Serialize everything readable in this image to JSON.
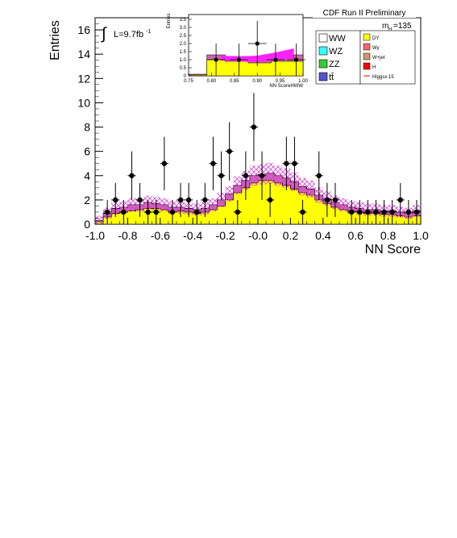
{
  "chart_data": [
    {
      "type": "histogram",
      "subtitle": "CDF Run II Preliminary",
      "xlabel": "NN Score",
      "ylabel": "Entries",
      "xlim": [
        -1.0,
        1.0
      ],
      "ylim": [
        0,
        17
      ],
      "x_ticks": [
        "-1.0",
        "-0.8",
        "-0.6",
        "-0.4",
        "-0.2",
        "-0.0",
        "0.2",
        "0.4",
        "0.6",
        "0.8",
        "1.0"
      ],
      "y_ticks": [
        "0",
        "2",
        "4",
        "6",
        "8",
        "10",
        "12",
        "14",
        "16"
      ],
      "lumi_label": "L=9.7fb",
      "lumi_exponent": "-1",
      "mass_label": "m",
      "mass_subscript": "H",
      "mass_value": "=135",
      "bin_edges": [
        -1.0,
        -0.95,
        -0.9,
        -0.85,
        -0.8,
        -0.75,
        -0.7,
        -0.65,
        -0.6,
        -0.55,
        -0.5,
        -0.45,
        -0.4,
        -0.35,
        -0.3,
        -0.25,
        -0.2,
        -0.15,
        -0.1,
        -0.05,
        0.0,
        0.05,
        0.1,
        0.15,
        0.2,
        0.25,
        0.3,
        0.35,
        0.4,
        0.45,
        0.5,
        0.55,
        0.6,
        0.65,
        0.7,
        0.75,
        0.8,
        0.85,
        0.9,
        0.95,
        1.0
      ],
      "series": [
        {
          "name": "DY",
          "color": "#ffff00",
          "values": [
            0.2,
            0.6,
            0.9,
            1.0,
            1.1,
            1.2,
            1.3,
            1.3,
            1.2,
            1.0,
            1.1,
            1.0,
            0.9,
            1.0,
            1.2,
            1.5,
            2.0,
            2.6,
            3.0,
            3.4,
            3.6,
            3.6,
            3.4,
            3.2,
            2.9,
            2.6,
            2.4,
            2.0,
            1.7,
            1.4,
            1.2,
            1.1,
            1.0,
            0.9,
            0.9,
            0.8,
            0.8,
            0.7,
            0.6,
            0.7
          ]
        },
        {
          "name": "total-background",
          "color": "#cc66aa",
          "values": [
            0.3,
            0.9,
            1.3,
            1.4,
            1.6,
            1.6,
            1.8,
            1.7,
            1.6,
            1.4,
            1.4,
            1.3,
            1.2,
            1.3,
            1.6,
            2.0,
            2.5,
            3.2,
            3.6,
            4.0,
            4.1,
            4.2,
            4.0,
            3.8,
            3.5,
            3.1,
            2.9,
            2.4,
            2.1,
            1.8,
            1.6,
            1.4,
            1.3,
            1.2,
            1.2,
            1.1,
            1.1,
            1.0,
            0.9,
            1.1
          ]
        }
      ],
      "data_points": [
        {
          "x": -0.925,
          "y": 1,
          "err": 1.0
        },
        {
          "x": -0.875,
          "y": 2,
          "err": 1.4
        },
        {
          "x": -0.825,
          "y": 1,
          "err": 1.0
        },
        {
          "x": -0.775,
          "y": 4,
          "err": 2.0
        },
        {
          "x": -0.725,
          "y": 2,
          "err": 1.4
        },
        {
          "x": -0.675,
          "y": 1,
          "err": 1.0
        },
        {
          "x": -0.625,
          "y": 1,
          "err": 1.0
        },
        {
          "x": -0.575,
          "y": 5,
          "err": 2.2
        },
        {
          "x": -0.525,
          "y": 1,
          "err": 1.0
        },
        {
          "x": -0.475,
          "y": 2,
          "err": 1.4
        },
        {
          "x": -0.425,
          "y": 2,
          "err": 1.4
        },
        {
          "x": -0.375,
          "y": 1,
          "err": 1.0
        },
        {
          "x": -0.325,
          "y": 2,
          "err": 1.4
        },
        {
          "x": -0.275,
          "y": 5,
          "err": 2.2
        },
        {
          "x": -0.225,
          "y": 4,
          "err": 2.0
        },
        {
          "x": -0.175,
          "y": 6,
          "err": 2.4
        },
        {
          "x": -0.125,
          "y": 1,
          "err": 1.0
        },
        {
          "x": -0.075,
          "y": 4,
          "err": 2.0
        },
        {
          "x": -0.025,
          "y": 8,
          "err": 2.8
        },
        {
          "x": 0.025,
          "y": 4,
          "err": 2.0
        },
        {
          "x": 0.075,
          "y": 2,
          "err": 1.4
        },
        {
          "x": 0.175,
          "y": 5,
          "err": 2.2
        },
        {
          "x": 0.225,
          "y": 5,
          "err": 2.2
        },
        {
          "x": 0.275,
          "y": 1,
          "err": 1.0
        },
        {
          "x": 0.375,
          "y": 4,
          "err": 2.0
        },
        {
          "x": 0.425,
          "y": 2,
          "err": 1.4
        },
        {
          "x": 0.475,
          "y": 2,
          "err": 1.4
        },
        {
          "x": 0.575,
          "y": 1,
          "err": 1.0
        },
        {
          "x": 0.625,
          "y": 1,
          "err": 1.0
        },
        {
          "x": 0.675,
          "y": 1,
          "err": 1.0
        },
        {
          "x": 0.725,
          "y": 1,
          "err": 1.0
        },
        {
          "x": 0.775,
          "y": 1,
          "err": 1.0
        },
        {
          "x": 0.825,
          "y": 1,
          "err": 1.0
        },
        {
          "x": 0.875,
          "y": 2,
          "err": 1.4
        },
        {
          "x": 0.925,
          "y": 1,
          "err": 1.0
        },
        {
          "x": 0.975,
          "y": 1,
          "err": 1.0
        }
      ],
      "legend": {
        "left": [
          {
            "label": "WW",
            "color": "#ffffff"
          },
          {
            "label": "WZ",
            "color": "#33ffff"
          },
          {
            "label": "ZZ",
            "color": "#33cc33"
          },
          {
            "label": "tt̄",
            "color": "#5555cc"
          }
        ],
        "right": [
          {
            "label": "DY",
            "color": "#ffff00",
            "kind": "box"
          },
          {
            "label": "Wγ",
            "color": "#ff6666",
            "kind": "box"
          },
          {
            "label": "W+jet",
            "color": "#cc9966",
            "kind": "box"
          },
          {
            "label": "H",
            "color": "#ff0000",
            "kind": "box"
          },
          {
            "label": "Higgsx 15",
            "color": "#ff0000",
            "kind": "line"
          }
        ]
      }
    },
    {
      "type": "histogram-inset",
      "xlabel": "NN ScoreHWW",
      "ylabel": "Entries",
      "xlim": [
        0.75,
        1.0
      ],
      "ylim": [
        0,
        3.8
      ],
      "x_ticks": [
        "0.75",
        "0.80",
        "0.85",
        "0.90",
        "0.95",
        "1.00"
      ],
      "y_ticks": [
        "0",
        "0.5",
        "1.0",
        "1.5",
        "2.0",
        "2.5",
        "3.0",
        "3.5"
      ],
      "bin_edges": [
        0.75,
        0.79,
        0.83,
        0.88,
        0.93,
        0.98,
        1.0
      ],
      "dy_values": [
        0.05,
        1.0,
        0.9,
        0.8,
        0.9,
        0.9
      ],
      "bg_values": [
        0.1,
        1.3,
        1.2,
        1.0,
        1.1,
        1.3
      ],
      "signal_band": {
        "x": [
          0.82,
          0.86,
          0.9,
          0.94,
          0.98
        ],
        "lo": [
          0.95,
          0.88,
          0.85,
          0.95,
          1.1
        ],
        "hi": [
          1.25,
          1.2,
          1.25,
          1.45,
          1.7
        ]
      },
      "data_points": [
        {
          "x": 0.81,
          "y": 1,
          "err": 1.0
        },
        {
          "x": 0.86,
          "y": 1,
          "err": 1.0
        },
        {
          "x": 0.9,
          "y": 2,
          "err": 1.4
        },
        {
          "x": 0.94,
          "y": 1,
          "err": 1.0
        },
        {
          "x": 0.985,
          "y": 1,
          "err": 1.0
        }
      ]
    }
  ]
}
